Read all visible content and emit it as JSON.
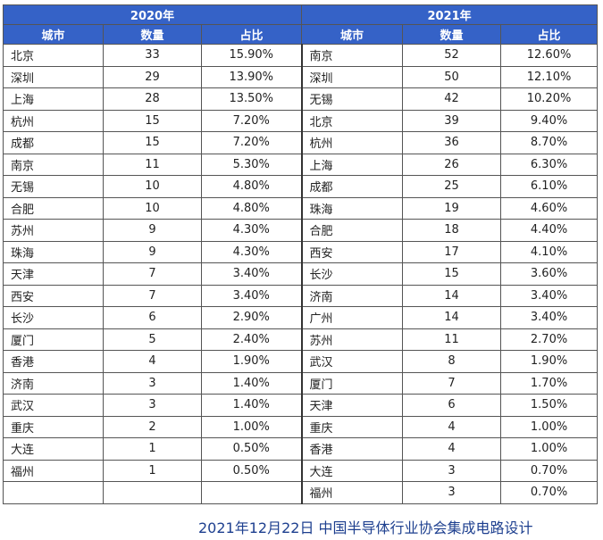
{
  "table": {
    "header2020": "2020年",
    "header2021": "2021年",
    "columns": [
      "城市",
      "数量",
      "占比"
    ],
    "rows2020": [
      [
        "北京",
        "33",
        "15.90%"
      ],
      [
        "深圳",
        "29",
        "13.90%"
      ],
      [
        "上海",
        "28",
        "13.50%"
      ],
      [
        "杭州",
        "15",
        "7.20%"
      ],
      [
        "成都",
        "15",
        "7.20%"
      ],
      [
        "南京",
        "11",
        "5.30%"
      ],
      [
        "无锡",
        "10",
        "4.80%"
      ],
      [
        "合肥",
        "10",
        "4.80%"
      ],
      [
        "苏州",
        "9",
        "4.30%"
      ],
      [
        "珠海",
        "9",
        "4.30%"
      ],
      [
        "天津",
        "7",
        "3.40%"
      ],
      [
        "西安",
        "7",
        "3.40%"
      ],
      [
        "长沙",
        "6",
        "2.90%"
      ],
      [
        "厦门",
        "5",
        "2.40%"
      ],
      [
        "香港",
        "4",
        "1.90%"
      ],
      [
        "济南",
        "3",
        "1.40%"
      ],
      [
        "武汉",
        "3",
        "1.40%"
      ],
      [
        "重庆",
        "2",
        "1.00%"
      ],
      [
        "大连",
        "1",
        "0.50%"
      ],
      [
        "福州",
        "1",
        "0.50%"
      ]
    ],
    "rows2021": [
      [
        "南京",
        "52",
        "12.60%"
      ],
      [
        "深圳",
        "50",
        "12.10%"
      ],
      [
        "无锡",
        "42",
        "10.20%"
      ],
      [
        "北京",
        "39",
        "9.40%"
      ],
      [
        "杭州",
        "36",
        "8.70%"
      ],
      [
        "上海",
        "26",
        "6.30%"
      ],
      [
        "成都",
        "25",
        "6.10%"
      ],
      [
        "珠海",
        "19",
        "4.60%"
      ],
      [
        "合肥",
        "18",
        "4.40%"
      ],
      [
        "西安",
        "17",
        "4.10%"
      ],
      [
        "长沙",
        "15",
        "3.60%"
      ],
      [
        "济南",
        "14",
        "3.40%"
      ],
      [
        "广州",
        "14",
        "3.40%"
      ],
      [
        "苏州",
        "11",
        "2.70%"
      ],
      [
        "武汉",
        "8",
        "1.90%"
      ],
      [
        "厦门",
        "7",
        "1.70%"
      ],
      [
        "天津",
        "6",
        "1.50%"
      ],
      [
        "重庆",
        "4",
        "1.00%"
      ],
      [
        "香港",
        "4",
        "1.00%"
      ],
      [
        "大连",
        "3",
        "0.70%"
      ],
      [
        "福州",
        "3",
        "0.70%"
      ]
    ]
  },
  "caption": "2021年12月22日 中国半导体行业协会集成电路设计"
}
